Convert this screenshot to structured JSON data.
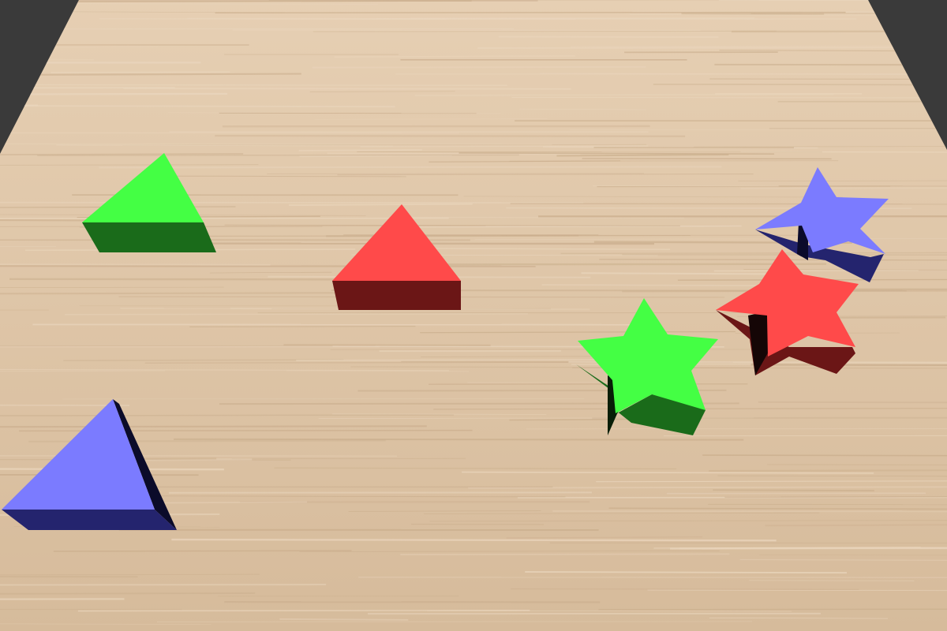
{
  "colors": {
    "background": "#3a3a3a",
    "table_wood": "#dcc3a4",
    "table_grain_dark": "#c9ad8c",
    "table_grain_light": "#ead6bd"
  },
  "objects": [
    {
      "name": "green-triangle",
      "shape": "triangle",
      "top": "#44ff44",
      "side": "#1a6b1a"
    },
    {
      "name": "red-triangle",
      "shape": "triangle",
      "top": "#ff4a4a",
      "side": "#6b1616"
    },
    {
      "name": "blue-triangle",
      "shape": "triangle",
      "top": "#7b7bff",
      "side": "#24246e"
    },
    {
      "name": "green-star",
      "shape": "star",
      "top": "#44ff44",
      "side": "#1a6b1a"
    },
    {
      "name": "red-star",
      "shape": "star",
      "top": "#ff4a4a",
      "side": "#6b1616"
    },
    {
      "name": "blue-star",
      "shape": "star",
      "top": "#7b7bff",
      "side": "#24246e"
    }
  ]
}
